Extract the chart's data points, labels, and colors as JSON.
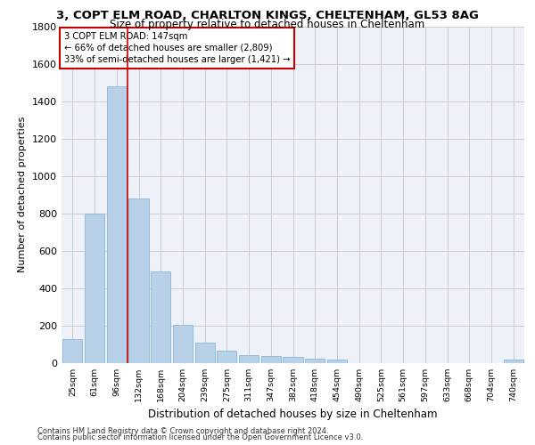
{
  "title_line1": "3, COPT ELM ROAD, CHARLTON KINGS, CHELTENHAM, GL53 8AG",
  "title_line2": "Size of property relative to detached houses in Cheltenham",
  "xlabel": "Distribution of detached houses by size in Cheltenham",
  "ylabel": "Number of detached properties",
  "footer_line1": "Contains HM Land Registry data © Crown copyright and database right 2024.",
  "footer_line2": "Contains public sector information licensed under the Open Government Licence v3.0.",
  "categories": [
    "25sqm",
    "61sqm",
    "96sqm",
    "132sqm",
    "168sqm",
    "204sqm",
    "239sqm",
    "275sqm",
    "311sqm",
    "347sqm",
    "382sqm",
    "418sqm",
    "454sqm",
    "490sqm",
    "525sqm",
    "561sqm",
    "597sqm",
    "633sqm",
    "668sqm",
    "704sqm",
    "740sqm"
  ],
  "values": [
    125,
    800,
    1480,
    880,
    490,
    205,
    105,
    65,
    42,
    35,
    30,
    22,
    18,
    0,
    0,
    0,
    0,
    0,
    0,
    0,
    18
  ],
  "bar_color": "#b8d0e8",
  "bar_edge_color": "#7aafd4",
  "property_label": "3 COPT ELM ROAD: 147sqm",
  "annotation_line2": "← 66% of detached houses are smaller (2,809)",
  "annotation_line3": "33% of semi-detached houses are larger (1,421) →",
  "vline_color": "#cc0000",
  "vline_position": 2.5,
  "annotation_box_color": "#cc0000",
  "ylim": [
    0,
    1800
  ],
  "yticks": [
    0,
    200,
    400,
    600,
    800,
    1000,
    1200,
    1400,
    1600,
    1800
  ],
  "grid_color": "#cccccc",
  "bg_color": "#eef2f8"
}
